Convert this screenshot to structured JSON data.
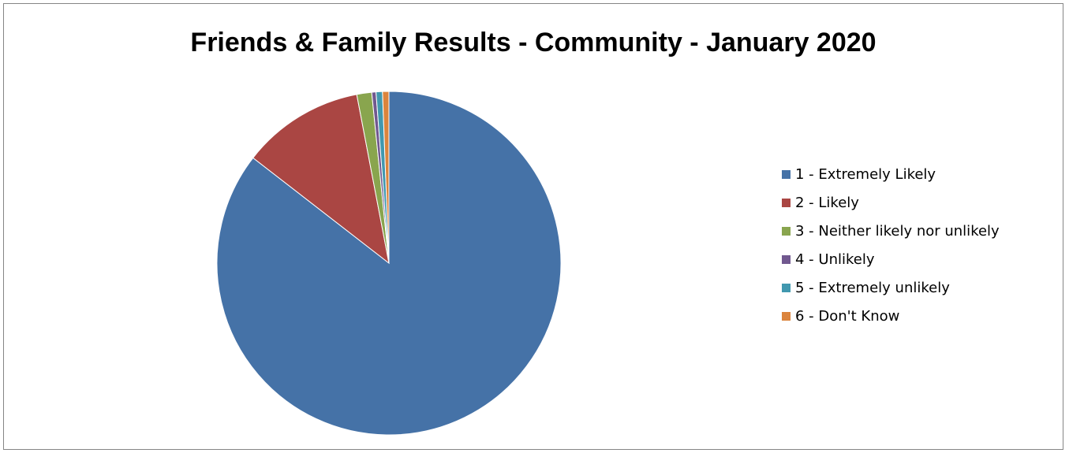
{
  "chart_data": {
    "type": "pie",
    "title": "Friends & Family Results - Community - January 2020",
    "legend_position": "right",
    "start_angle_deg": 0,
    "direction": "clockwise",
    "categories": [
      "1 - Extremely Likely",
      "2 - Likely",
      "3 - Neither likely nor unlikely",
      "4 - Unlikely",
      "5 - Extremely unlikely",
      "6 - Don't Know"
    ],
    "values": [
      85.5,
      11.5,
      1.4,
      0.4,
      0.6,
      0.6
    ],
    "colors": [
      "#4572A7",
      "#AA4643",
      "#89A54E",
      "#71588F",
      "#4198AF",
      "#DB843D"
    ],
    "slice_border_color": "#ffffff"
  }
}
